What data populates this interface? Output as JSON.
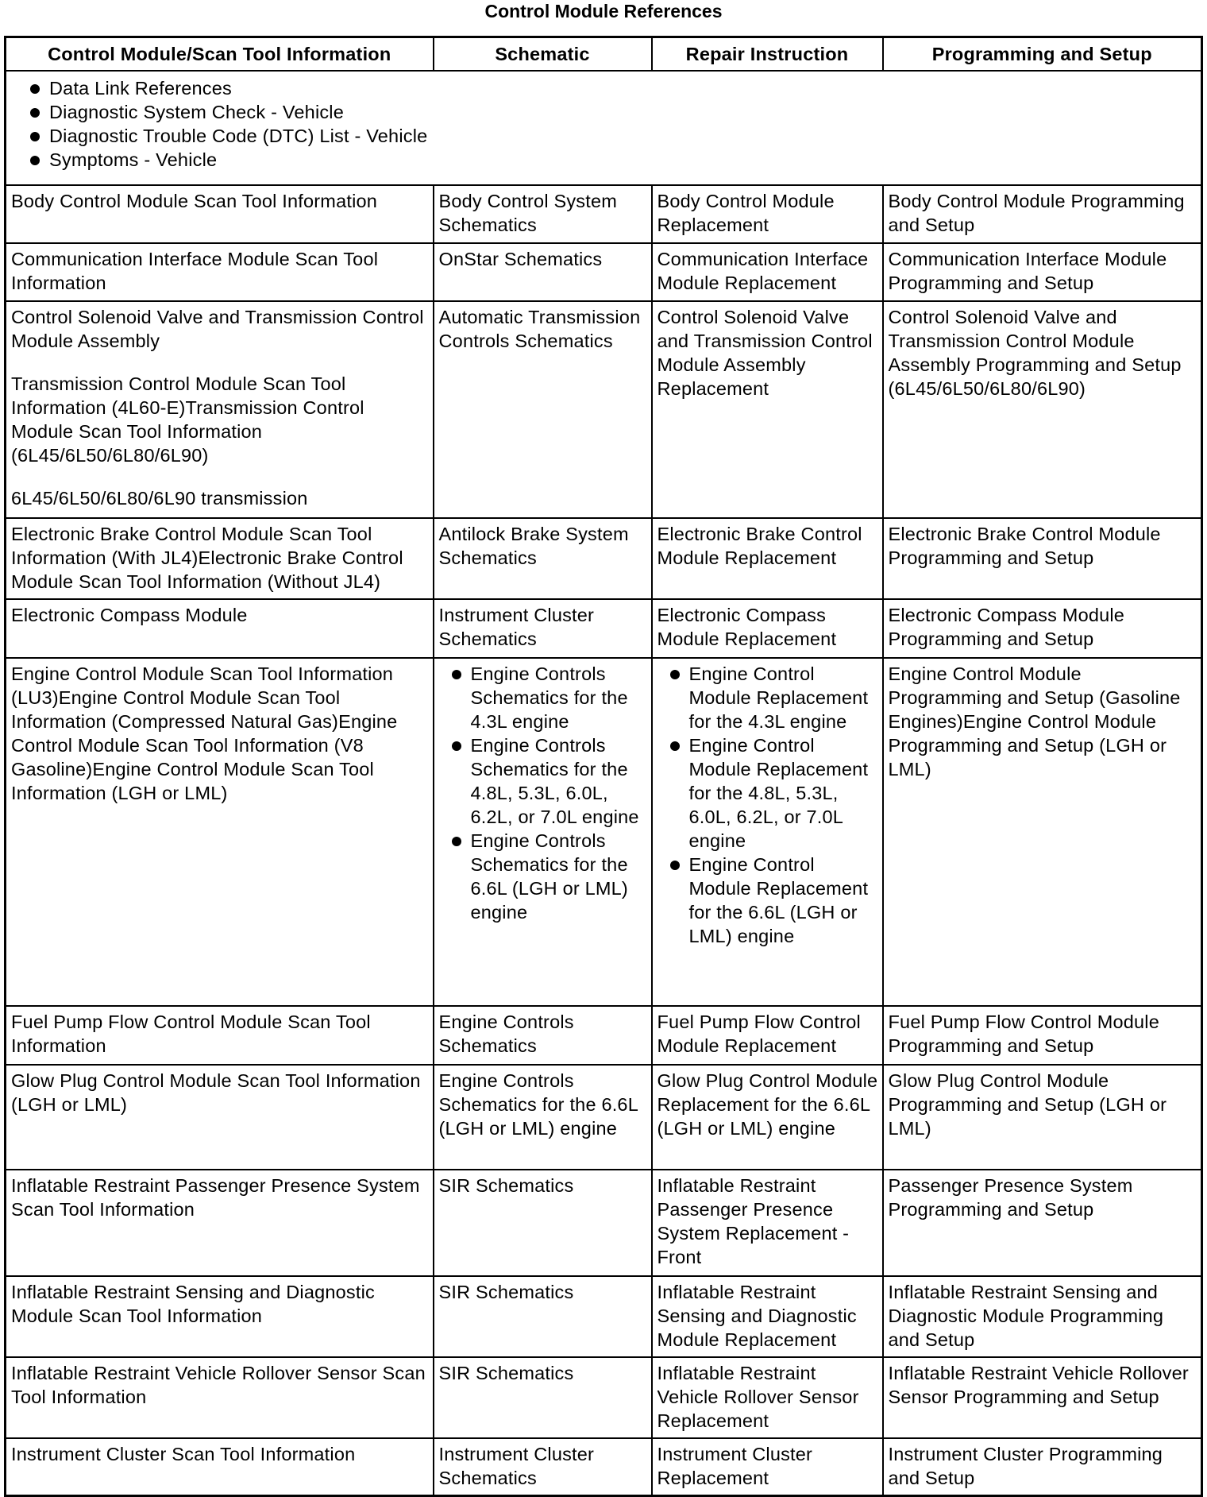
{
  "title": "Control Module References",
  "headers": [
    "Control Module/Scan Tool Information",
    "Schematic",
    "Repair Instruction",
    "Programming and Setup"
  ],
  "top_list": [
    "Data Link References",
    "Diagnostic System Check - Vehicle",
    "Diagnostic Trouble Code (DTC) List - Vehicle",
    "Symptoms - Vehicle"
  ],
  "rows": [
    {
      "info": [
        "Body Control Module Scan Tool Information"
      ],
      "schematic": "Body Control System Schematics",
      "repair": "Body Control Module Replacement",
      "programming": "Body Control Module Programming and Setup"
    },
    {
      "info": [
        "Communication Interface Module Scan Tool Information"
      ],
      "schematic": "OnStar Schematics",
      "repair": "Communication Interface Module Replacement",
      "programming": "Communication Interface Module Programming and Setup"
    },
    {
      "info": [
        "Control Solenoid Valve and Transmission Control Module Assembly",
        "Transmission Control Module Scan Tool Information (4L60-E)Transmission Control Module Scan Tool Information (6L45/6L50/6L80/6L90)",
        "6L45/6L50/6L80/6L90 transmission"
      ],
      "schematic": "Automatic Transmission Controls Schematics",
      "repair": "Control Solenoid Valve and Transmission Control Module Assembly Replacement",
      "programming": "Control Solenoid Valve and Transmission Control Module Assembly Programming and Setup (6L45/6L50/6L80/6L90)"
    },
    {
      "info": [
        "Electronic Brake Control Module Scan Tool Information (With JL4)Electronic Brake Control Module Scan Tool Information (Without JL4)"
      ],
      "schematic": "Antilock Brake System Schematics",
      "repair": "Electronic Brake Control Module Replacement",
      "programming": "Electronic Brake Control Module Programming and Setup"
    },
    {
      "info": [
        "Electronic Compass Module"
      ],
      "schematic": "Instrument Cluster Schematics",
      "repair": "Electronic Compass Module Replacement",
      "programming": "Electronic Compass Module Programming and Setup"
    },
    {
      "info": [
        "Engine Control Module Scan Tool Information (LU3)Engine Control Module Scan Tool Information (Compressed Natural Gas)Engine Control Module Scan Tool Information (V8 Gasoline)Engine Control Module Scan Tool Information (LGH or LML)"
      ],
      "schematic_list": [
        "Engine Controls Schematics for the 4.3L engine",
        "Engine Controls Schematics for the 4.8L, 5.3L, 6.0L, 6.2L, or 7.0L engine",
        "Engine Controls Schematics for the 6.6L (LGH or LML) engine"
      ],
      "repair_list": [
        "Engine Control Module Replacement for the 4.3L engine",
        "Engine Control Module Replacement for the 4.8L, 5.3L, 6.0L, 6.2L, or 7.0L engine",
        "Engine Control Module Replacement for the 6.6L (LGH or LML) engine"
      ],
      "programming": "Engine Control Module Programming and Setup (Gasoline Engines)Engine Control Module Programming and Setup (LGH or LML)"
    },
    {
      "info": [
        "Fuel Pump Flow Control Module Scan Tool Information"
      ],
      "schematic": "Engine Controls Schematics",
      "repair": "Fuel Pump Flow Control Module Replacement",
      "programming": "Fuel Pump Flow Control Module Programming and Setup"
    },
    {
      "info": [
        "Glow Plug Control Module Scan Tool Information (LGH or LML)"
      ],
      "schematic": "Engine Controls Schematics for the 6.6L (LGH or LML) engine",
      "repair": "Glow Plug Control Module Replacement for the 6.6L (LGH or LML) engine",
      "programming": "Glow Plug Control Module Programming and Setup (LGH or LML)"
    },
    {
      "info": [
        "Inflatable Restraint Passenger Presence System Scan Tool Information"
      ],
      "schematic": "SIR Schematics",
      "repair": "Inflatable Restraint Passenger Presence System Replacement - Front",
      "programming": "Passenger Presence System Programming and Setup"
    },
    {
      "info": [
        "Inflatable Restraint Sensing and Diagnostic Module Scan Tool Information"
      ],
      "schematic": "SIR Schematics",
      "repair": "Inflatable Restraint Sensing and Diagnostic Module Replacement",
      "programming": "Inflatable Restraint Sensing and Diagnostic Module Programming and Setup"
    },
    {
      "info": [
        "Inflatable Restraint Vehicle Rollover Sensor Scan Tool Information"
      ],
      "schematic": "SIR Schematics",
      "repair": "Inflatable Restraint Vehicle Rollover Sensor Replacement",
      "programming": "Inflatable Restraint Vehicle Rollover Sensor Programming and Setup"
    },
    {
      "info": [
        "Instrument Cluster Scan Tool Information"
      ],
      "schematic": "Instrument Cluster Schematics",
      "repair": "Instrument Cluster Replacement",
      "programming": "Instrument Cluster Programming and Setup"
    }
  ]
}
